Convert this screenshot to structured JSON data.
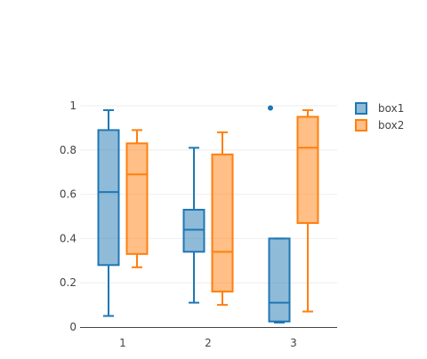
{
  "chart_data": {
    "type": "box",
    "categories": [
      "1",
      "2",
      "3"
    ],
    "ylim": [
      0,
      1
    ],
    "yticks": [
      0,
      0.2,
      0.4,
      0.6,
      0.8,
      1
    ],
    "ytick_labels": [
      "0",
      "0.2",
      "0.4",
      "0.6",
      "0.8",
      "1"
    ],
    "grid": true,
    "legend_position": "top-right",
    "series": [
      {
        "name": "box1",
        "color": "#1f77b4",
        "boxes": [
          {
            "category": "1",
            "min": 0.05,
            "q1": 0.28,
            "median": 0.61,
            "q3": 0.89,
            "max": 0.98,
            "outliers": []
          },
          {
            "category": "2",
            "min": 0.11,
            "q1": 0.34,
            "median": 0.44,
            "q3": 0.53,
            "max": 0.81,
            "outliers": []
          },
          {
            "category": "3",
            "min": 0.02,
            "q1": 0.025,
            "median": 0.11,
            "q3": 0.4,
            "max": 0.4,
            "outliers": [
              0.99
            ]
          }
        ]
      },
      {
        "name": "box2",
        "color": "#ff7f0e",
        "boxes": [
          {
            "category": "1",
            "min": 0.27,
            "q1": 0.33,
            "median": 0.69,
            "q3": 0.83,
            "max": 0.89,
            "outliers": []
          },
          {
            "category": "2",
            "min": 0.1,
            "q1": 0.16,
            "median": 0.34,
            "q3": 0.78,
            "max": 0.88,
            "outliers": []
          },
          {
            "category": "3",
            "min": 0.07,
            "q1": 0.47,
            "median": 0.81,
            "q3": 0.95,
            "max": 0.98,
            "outliers": []
          }
        ]
      }
    ]
  }
}
